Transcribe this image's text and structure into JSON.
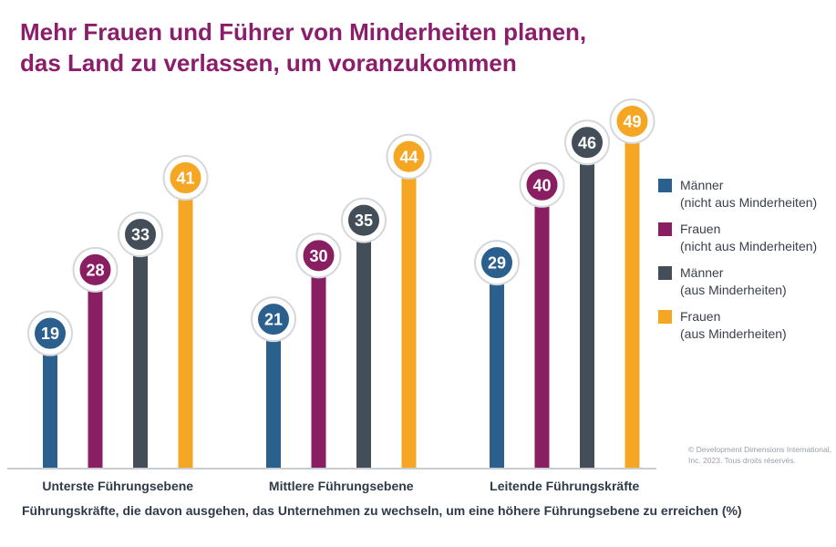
{
  "title": {
    "line1": "Mehr Frauen und Führer von Minderheiten planen,",
    "line2": "das Land zu verlassen, um voranzukommen"
  },
  "colors": {
    "title": "#8b1e6a",
    "men_non_minority": "#2b5f8e",
    "women_non_minority": "#8a1e62",
    "men_minority": "#434e59",
    "women_minority": "#f5a623"
  },
  "chart_data": {
    "type": "bar",
    "style": "lollipop",
    "categories": [
      "Unterste Führungsebene",
      "Mittlere Führungsebene",
      "Leitende Führungskräfte"
    ],
    "series": [
      {
        "name": "Männer (nicht aus Minderheiten)",
        "values": [
          19,
          21,
          29
        ]
      },
      {
        "name": "Frauen (nicht aus Minderheiten)",
        "values": [
          28,
          30,
          40
        ]
      },
      {
        "name": "Männer (aus Minderheiten)",
        "values": [
          33,
          35,
          46
        ]
      },
      {
        "name": "Frauen (aus Minderheiten)",
        "values": [
          41,
          44,
          49
        ]
      }
    ],
    "xlabel": "Führungskräfte, die davon ausgehen, das Unternehmen zu wechseln, um eine höhere Führungsebene zu erreichen (%)",
    "ylabel": "",
    "ylim": [
      0,
      55
    ],
    "grid": false,
    "legend_position": "right"
  },
  "legend": [
    {
      "line1": "Männer",
      "line2": "(nicht aus Minderheiten)",
      "color_key": "men_non_minority"
    },
    {
      "line1": "Frauen",
      "line2": "(nicht aus Minderheiten)",
      "color_key": "women_non_minority"
    },
    {
      "line1": "Männer",
      "line2": "(aus Minderheiten)",
      "color_key": "men_minority"
    },
    {
      "line1": "Frauen",
      "line2": "(aus Minderheiten)",
      "color_key": "women_minority"
    }
  ],
  "copyright": {
    "line1": "© Development Dimensions International,",
    "line2": "Inc. 2023. Tous droits réservés."
  }
}
